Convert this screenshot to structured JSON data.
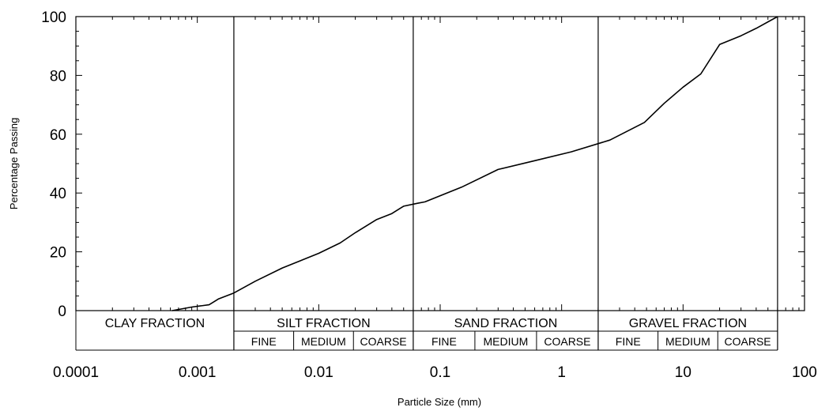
{
  "chart_data": {
    "type": "line",
    "title": "",
    "xlabel": "Particle Size (mm)",
    "ylabel": "Percentage Passing",
    "xscale": "log",
    "xlim": [
      0.0001,
      100
    ],
    "ylim": [
      0,
      100
    ],
    "grid": false,
    "x_ticks": [
      "0.0001",
      "0.001",
      "0.01",
      "0.1",
      "1",
      "10",
      "100"
    ],
    "y_ticks": [
      "0",
      "20",
      "40",
      "60",
      "80",
      "100"
    ],
    "fraction_boundaries": [
      0.002,
      0.06,
      2,
      60
    ],
    "fractions": [
      {
        "label": "CLAY FRACTION",
        "from": 0.0001,
        "to": 0.002,
        "subs": []
      },
      {
        "label": "SILT FRACTION",
        "from": 0.002,
        "to": 0.06,
        "subs": [
          "FINE",
          "MEDIUM",
          "COARSE"
        ]
      },
      {
        "label": "SAND FRACTION",
        "from": 0.06,
        "to": 2,
        "subs": [
          "FINE",
          "MEDIUM",
          "COARSE"
        ]
      },
      {
        "label": "GRAVEL FRACTION",
        "from": 2,
        "to": 60,
        "subs": [
          "FINE",
          "MEDIUM",
          "COARSE"
        ]
      }
    ],
    "series": [
      {
        "x": [
          0.00062,
          0.0009,
          0.00125,
          0.0015,
          0.002,
          0.003,
          0.005,
          0.01,
          0.015,
          0.02,
          0.03,
          0.04,
          0.05,
          0.065,
          0.075,
          0.15,
          0.3,
          0.6,
          1.2,
          2.5,
          4.8,
          7,
          10,
          14,
          20,
          30,
          40,
          60
        ],
        "y": [
          0,
          1.2,
          2,
          4,
          6,
          10,
          14.5,
          19.5,
          23,
          26.5,
          31,
          33,
          35.5,
          36.5,
          37,
          42,
          48,
          51,
          54,
          58,
          64,
          70.5,
          76,
          80.5,
          90.5,
          93.5,
          96,
          100
        ]
      }
    ]
  }
}
